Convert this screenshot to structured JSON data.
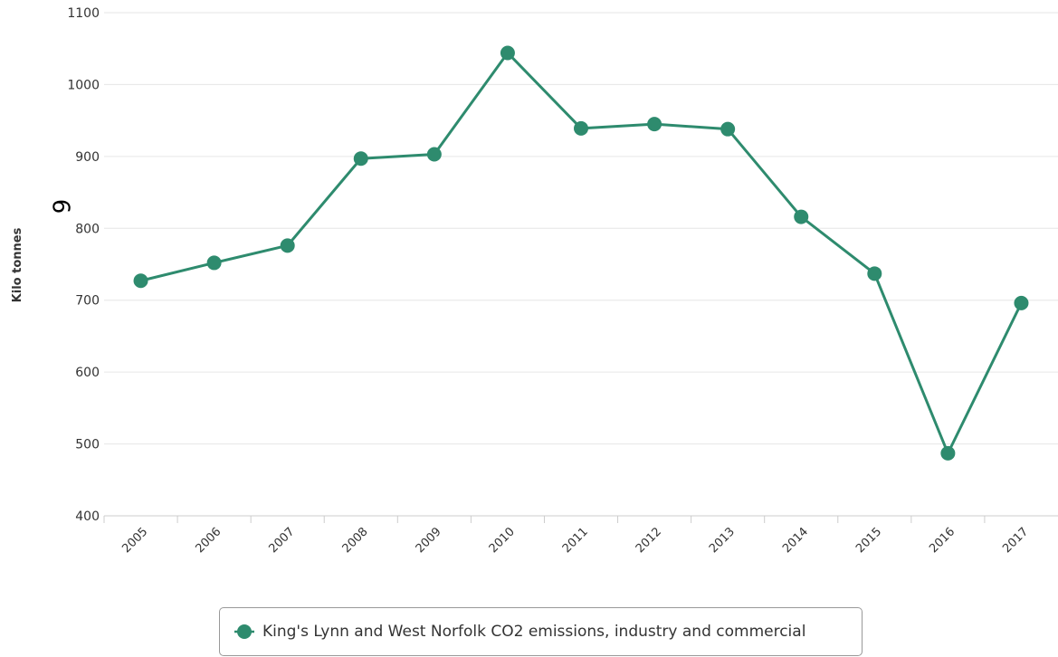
{
  "chart_data": {
    "type": "line",
    "title": "",
    "xlabel": "",
    "ylabel": "Kilo tonnes",
    "ylim": [
      400,
      1100
    ],
    "yticks": [
      "400",
      "500",
      "600",
      "700",
      "800",
      "900",
      "1000",
      "1100"
    ],
    "categories": [
      "2005",
      "2006",
      "2007",
      "2008",
      "2009",
      "2010",
      "2011",
      "2012",
      "2013",
      "2014",
      "2015",
      "2016",
      "2017"
    ],
    "series": [
      {
        "name": "King's Lynn and West Norfolk CO2 emissions, industry and commercial",
        "color": "#2e8b6e",
        "values": [
          727,
          752,
          776,
          897,
          903,
          1044,
          939,
          945,
          938,
          816,
          737,
          487,
          696
        ]
      }
    ],
    "grid": true,
    "legend_position": "bottom-center",
    "stray_glyph": "6"
  }
}
